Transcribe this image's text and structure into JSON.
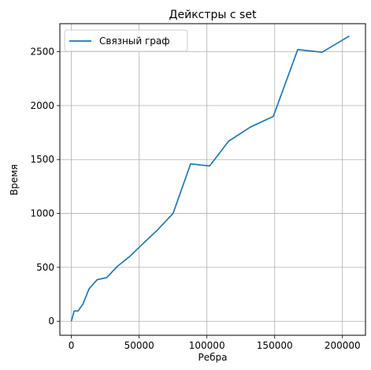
{
  "chart_data": {
    "type": "line",
    "title": "Дейкстры с set",
    "xlabel": "Ребра",
    "ylabel": "Время",
    "xlim": [
      -8500,
      217000
    ],
    "ylim": [
      -130,
      2760
    ],
    "xticks": [
      0,
      50000,
      100000,
      150000,
      200000
    ],
    "xtick_labels": [
      "0",
      "50000",
      "100000",
      "150000",
      "200000"
    ],
    "yticks": [
      0,
      500,
      1000,
      1500,
      2000,
      2500
    ],
    "ytick_labels": [
      "0",
      "500",
      "1000",
      "1500",
      "2000",
      "2500"
    ],
    "grid": true,
    "legend": "top-left",
    "series": [
      {
        "name": "Связный граф",
        "color": "#1f77b4",
        "x": [
          0,
          2000,
          5000,
          8500,
          13000,
          19000,
          26000,
          34000,
          43000,
          52000,
          63000,
          75000,
          88000,
          102000,
          116000,
          132000,
          149000,
          167000,
          185000,
          205000
        ],
        "y": [
          0,
          95,
          95,
          160,
          300,
          385,
          405,
          510,
          600,
          710,
          840,
          1000,
          1460,
          1440,
          1670,
          1800,
          1900,
          2520,
          2495,
          2645
        ]
      }
    ]
  }
}
